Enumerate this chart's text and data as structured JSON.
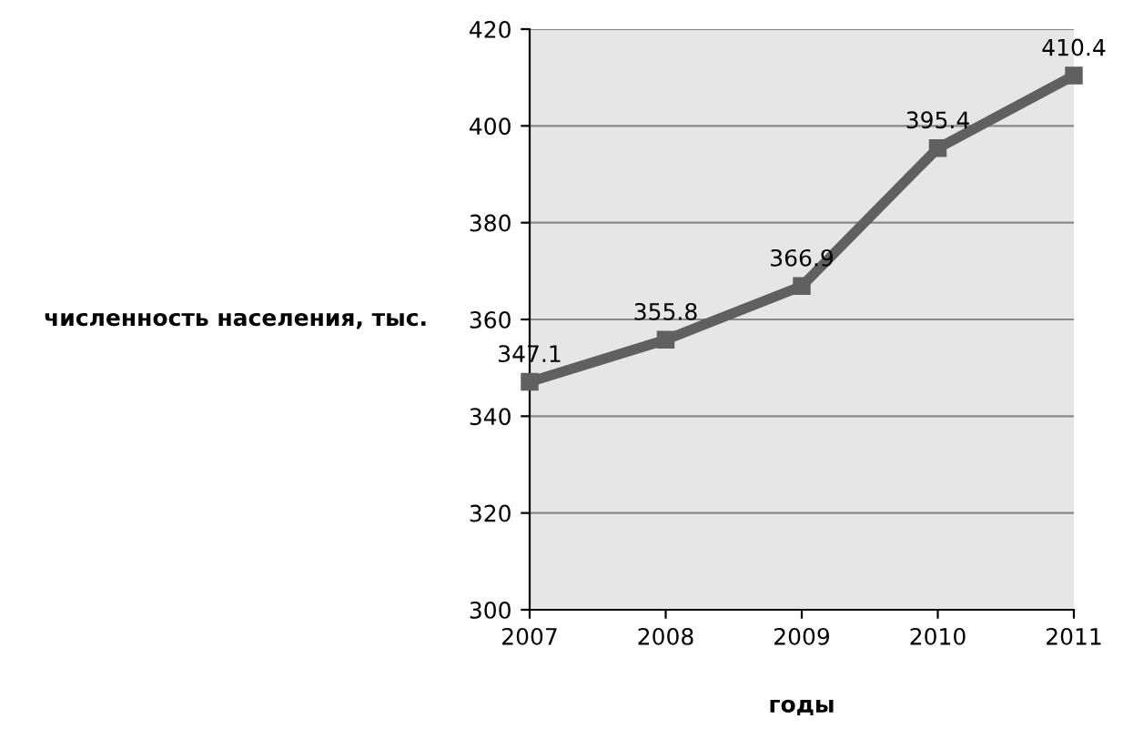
{
  "chart_data": {
    "type": "line",
    "xlabel": "годы",
    "ylabel": "численность населения, тыс.",
    "x": [
      2007,
      2008,
      2009,
      2010,
      2011
    ],
    "series": [
      {
        "color": "#606060",
        "values": [
          347.1,
          355.8,
          366.9,
          395.4,
          410.4
        ]
      }
    ],
    "xlim": [
      2007,
      2011
    ],
    "xticks": [
      2007,
      2008,
      2009,
      2010,
      2011
    ],
    "ylim": [
      300,
      420
    ],
    "yticks": [
      300,
      320,
      340,
      360,
      380,
      400,
      420
    ],
    "grid": "y",
    "marker": "square",
    "line_style": "solid",
    "data_labels": true,
    "legend": false
  }
}
